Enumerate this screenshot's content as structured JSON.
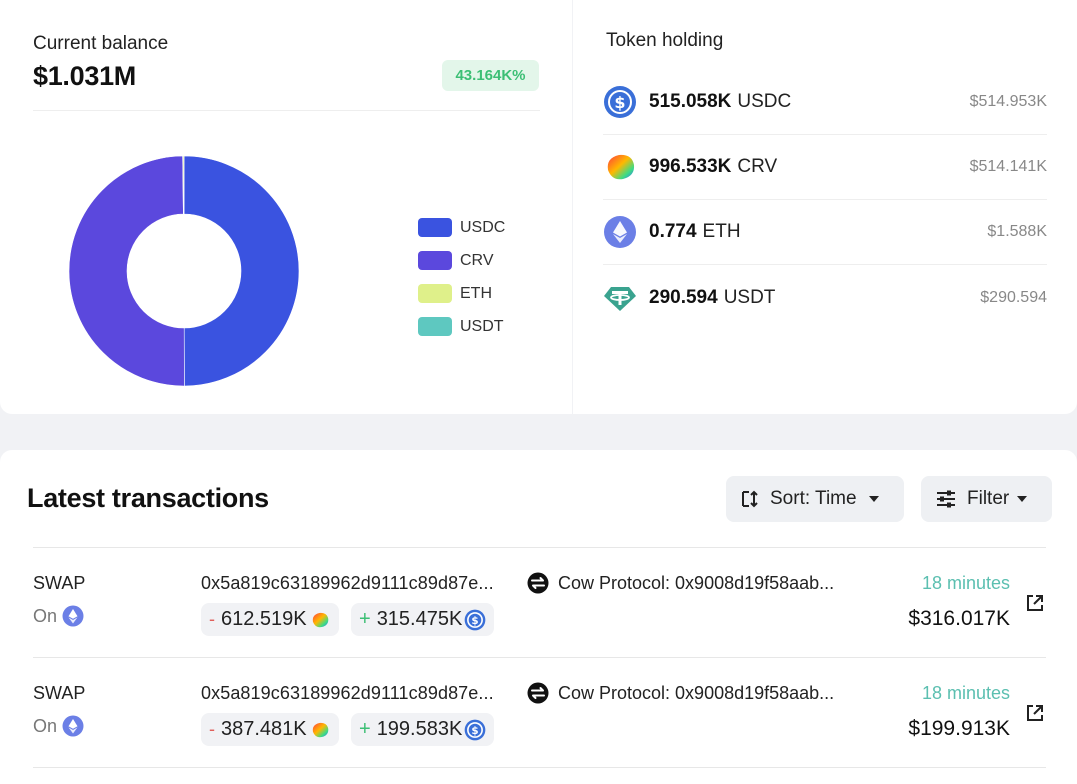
{
  "balance": {
    "label": "Current balance",
    "value": "$1.031M",
    "change_badge": "43.164K%",
    "badge_color": "#3cbf75"
  },
  "chart_data": {
    "type": "pie",
    "style": "donut",
    "categories": [
      "USDC",
      "CRV",
      "ETH",
      "USDT"
    ],
    "values": [
      514.953,
      514.141,
      1.588,
      0.290594
    ],
    "colors": [
      "#3a53e0",
      "#5b48dd",
      "#dff08a",
      "#5ec8c0"
    ],
    "legend_position": "right"
  },
  "holdings": {
    "title": "Token holding",
    "tokens": [
      {
        "amount": "515.058K",
        "symbol": "USDC",
        "value": "$514.953K",
        "icon": "usdc-icon"
      },
      {
        "amount": "996.533K",
        "symbol": "CRV",
        "value": "$514.141K",
        "icon": "crv-icon"
      },
      {
        "amount": "0.774",
        "symbol": "ETH",
        "value": "$1.588K",
        "icon": "eth-icon"
      },
      {
        "amount": "290.594",
        "symbol": "USDT",
        "value": "$290.594",
        "icon": "usdt-icon"
      }
    ]
  },
  "transactions": {
    "title": "Latest transactions",
    "sort_label": "Sort: Time",
    "filter_label": "Filter",
    "rows": [
      {
        "type": "SWAP",
        "on_label": "On",
        "hash": "0x5a819c63189962d9111c89d87e...",
        "protocol": "Cow Protocol: 0x9008d19f58aab...",
        "out_sign": "-",
        "out_amount": "612.519K",
        "in_sign": "+",
        "in_amount": "315.475K",
        "time": "18 minutes",
        "usd": "$316.017K"
      },
      {
        "type": "SWAP",
        "on_label": "On",
        "hash": "0x5a819c63189962d9111c89d87e...",
        "protocol": "Cow Protocol: 0x9008d19f58aab...",
        "out_sign": "-",
        "out_amount": "387.481K",
        "in_sign": "+",
        "in_amount": "199.583K",
        "time": "18 minutes",
        "usd": "$199.913K"
      }
    ]
  }
}
